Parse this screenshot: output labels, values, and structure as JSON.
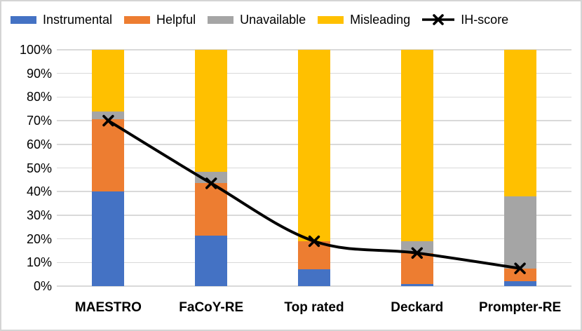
{
  "chart_data": {
    "type": "bar",
    "stacked": true,
    "units": "percent",
    "title": "",
    "xlabel": "",
    "ylabel": "",
    "ylim": [
      0,
      100
    ],
    "grid": true,
    "grid_color": "#d9d9d9",
    "legend_position": "top",
    "categories": [
      "MAESTRO",
      "FaCoY-RE",
      "Top rated",
      "Deckard",
      "Prompter-RE"
    ],
    "y_ticks": [
      "0%",
      "10%",
      "20%",
      "30%",
      "40%",
      "50%",
      "60%",
      "70%",
      "80%",
      "90%",
      "100%"
    ],
    "series": [
      {
        "name": "Instrumental",
        "color": "#4472c4",
        "values": [
          40,
          21.5,
          7,
          1,
          2
        ]
      },
      {
        "name": "Helpful",
        "color": "#ed7d31",
        "values": [
          30.5,
          22,
          12,
          13,
          5.5
        ]
      },
      {
        "name": "Unavailable",
        "color": "#a5a5a5",
        "values": [
          3.5,
          5,
          0,
          5,
          30.5
        ]
      },
      {
        "name": "Misleading",
        "color": "#ffc000",
        "values": [
          26,
          51.5,
          81,
          81,
          62
        ]
      }
    ],
    "line_series": {
      "name": "IH-score",
      "color": "#000000",
      "marker": "x",
      "smooth": true,
      "values": [
        70,
        43.5,
        19,
        14,
        7.5
      ]
    }
  }
}
